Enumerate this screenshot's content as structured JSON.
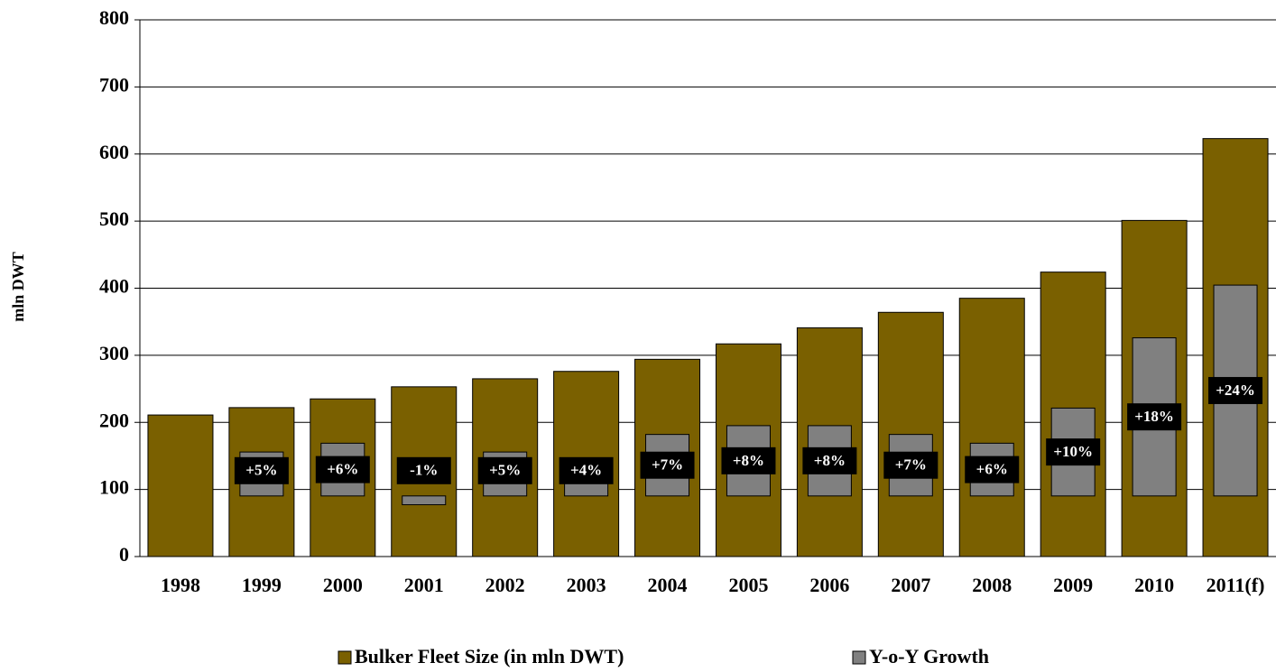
{
  "chart_data": {
    "type": "bar",
    "y_label": "mln DWT",
    "categories": [
      "1998",
      "1999",
      "2000",
      "2001",
      "2002",
      "2003",
      "2004",
      "2005",
      "2006",
      "2007",
      "2008",
      "2009",
      "2010",
      "2011(f)"
    ],
    "series": [
      {
        "name": "Bulker Fleet Size (in mln DWT)",
        "color": "#7a6000",
        "values": [
          211,
          222,
          235,
          253,
          265,
          276,
          294,
          317,
          341,
          364,
          385,
          424,
          501,
          623
        ]
      },
      {
        "name": "Y-o-Y Growth",
        "color": "#808080",
        "axis": "y2",
        "values": [
          null,
          5,
          6,
          -1,
          5,
          4,
          7,
          8,
          8,
          7,
          6,
          10,
          18,
          24
        ],
        "value_labels": [
          null,
          "+5%",
          "+6%",
          "-1%",
          "+5%",
          "+4%",
          "+7%",
          "+8%",
          "+8%",
          "+7%",
          "+6%",
          "+10%",
          "+18%",
          "+24%"
        ]
      }
    ],
    "ylim": [
      0,
      800
    ],
    "yticks": [
      0,
      100,
      200,
      300,
      400,
      500,
      600,
      700,
      800
    ],
    "y2lim": [
      -6.9,
      54.2
    ],
    "grid": true,
    "legend": "bottom"
  }
}
